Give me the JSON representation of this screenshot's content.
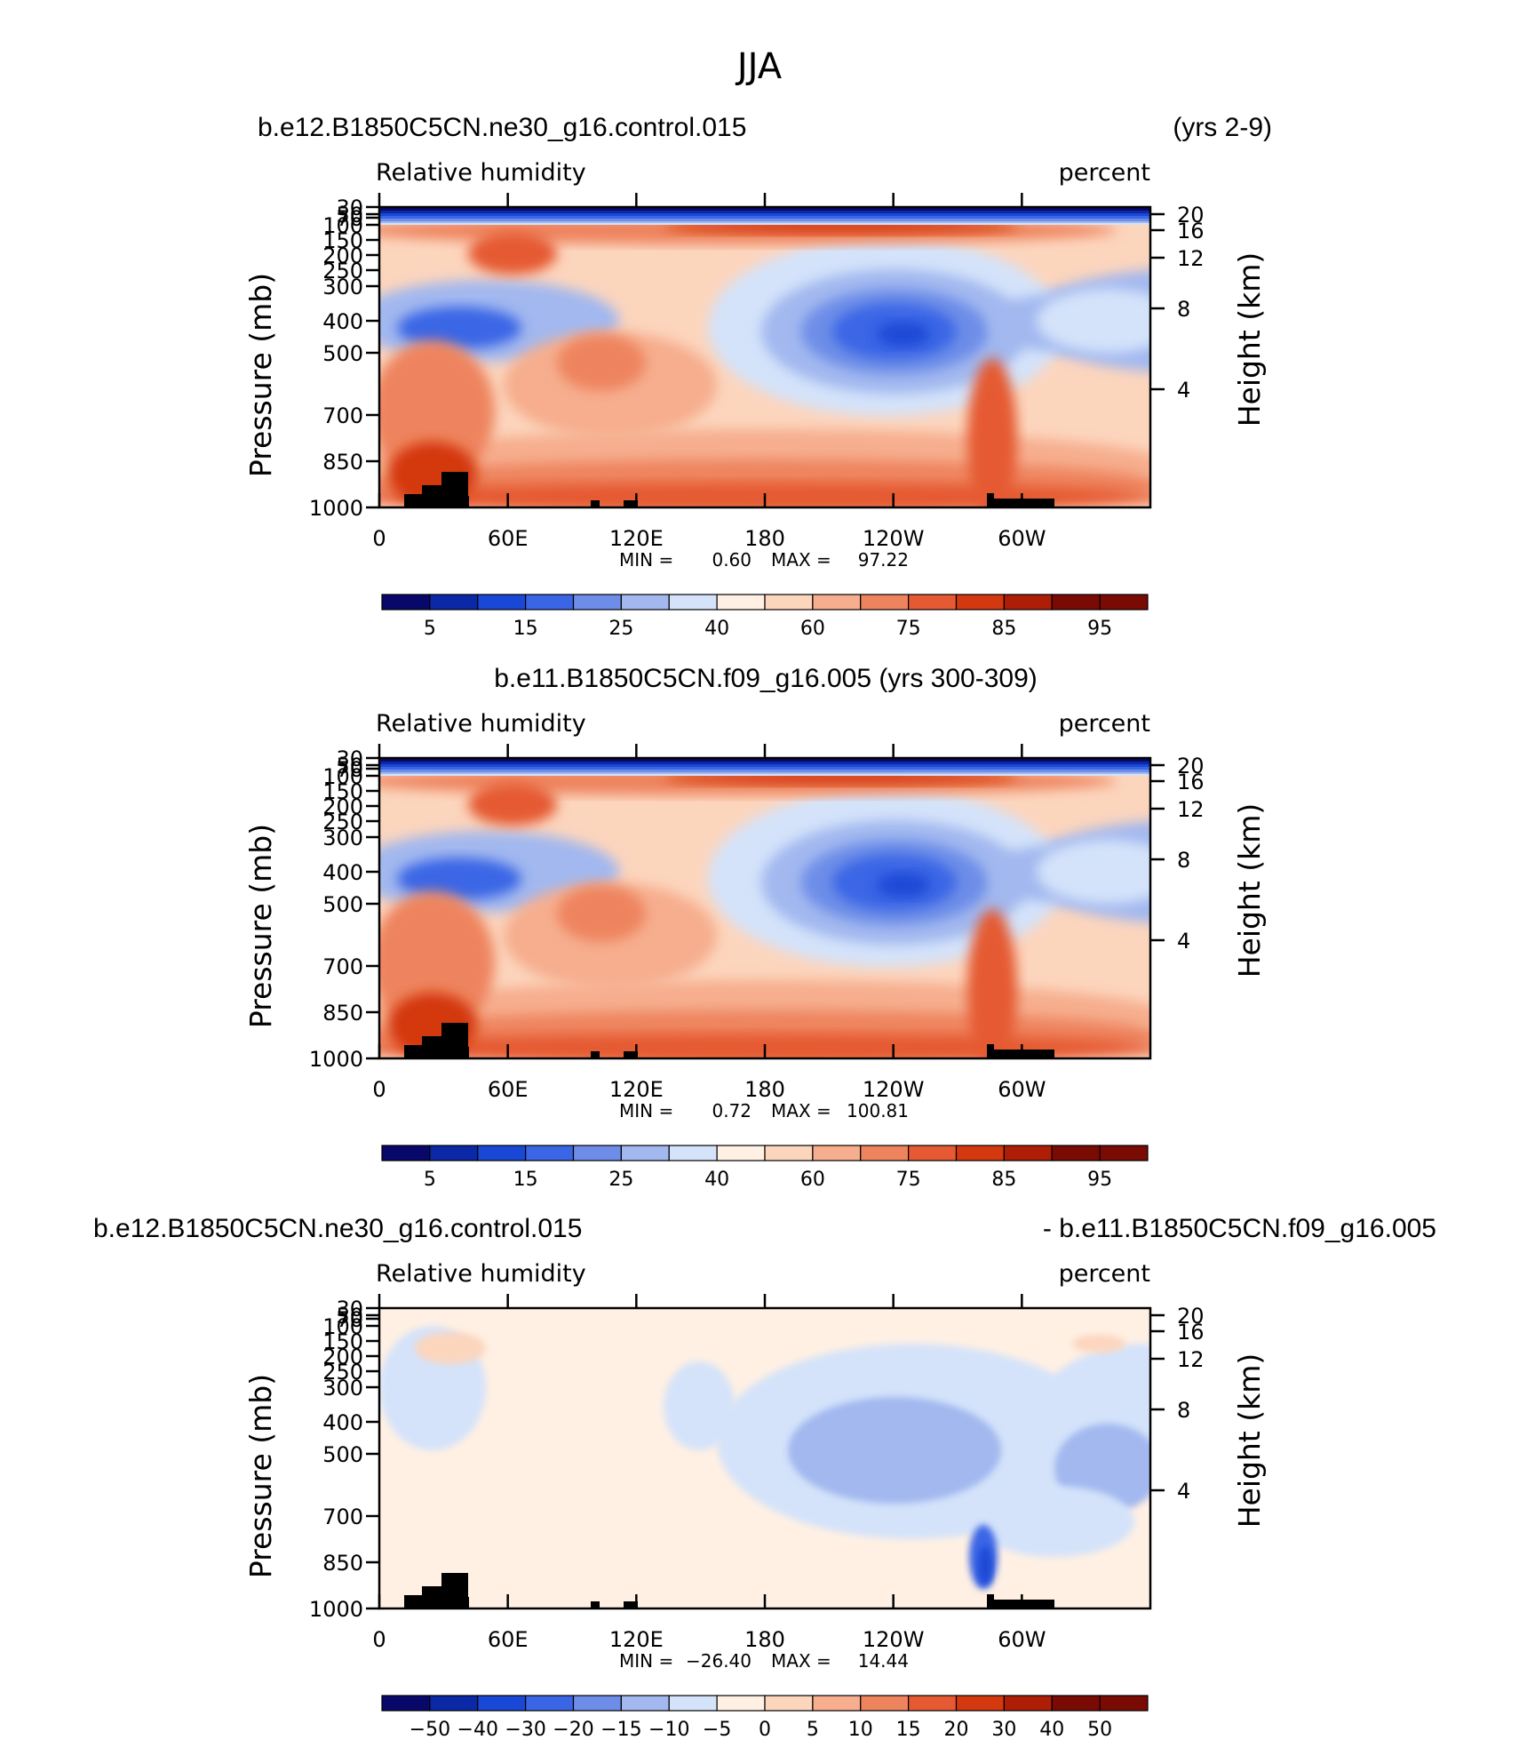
{
  "figure_title": "JJA",
  "colors": {
    "land": "#000000",
    "axis": "#000000",
    "rh_palette": [
      "#08086b",
      "#0b28a6",
      "#1a48d6",
      "#3a66e6",
      "#6d8de8",
      "#a2b8ef",
      "#d4e3fa",
      "#fff0e3",
      "#fcd5bd",
      "#f6ae8e",
      "#ee845e",
      "#e55a32",
      "#d4380f",
      "#ae1e06",
      "#7a0a04"
    ],
    "diff_palette": [
      "#08086b",
      "#0b28a6",
      "#1a48d6",
      "#3a66e6",
      "#6d8de8",
      "#a2b8ef",
      "#d4e3fa",
      "#fff0e3",
      "#fcd5bd",
      "#f6ae8e",
      "#ee845e",
      "#e55a32",
      "#d4380f",
      "#ae1e06",
      "#7a0a04"
    ]
  },
  "chart_data": [
    {
      "type": "heatmap",
      "panel_title_left": "b.e12.B1850C5CN.ne30_g16.control.015",
      "panel_title_right": "(yrs 2-9)",
      "label_left": "Relative  humidity",
      "label_right": "percent",
      "ylabel": "Pressure  (mb)",
      "ylabel_right": "Height  (km)",
      "xticks": [
        "0",
        "60E",
        "120E",
        "180",
        "120W",
        "60W"
      ],
      "xlim": [
        0,
        360
      ],
      "yticks": [
        "30",
        "50",
        "70",
        "100",
        "150",
        "200",
        "250",
        "300",
        "400",
        "500",
        "700",
        "850",
        "1000"
      ],
      "ylim": [
        1000,
        30
      ],
      "yticks_right": [
        "20",
        "16",
        "12",
        "8",
        "4"
      ],
      "stats": {
        "min_label": "MIN =",
        "min": "0.60",
        "max_label": "MAX =",
        "max": "97.22"
      },
      "colorbar_labels": [
        "5",
        "15",
        "25",
        "40",
        "60",
        "75",
        "85",
        "95"
      ],
      "range": [
        0.6,
        97.22
      ]
    },
    {
      "type": "heatmap",
      "panel_title_center": "b.e11.B1850C5CN.f09_g16.005 (yrs 300-309)",
      "label_left": "Relative  humidity",
      "label_right": "percent",
      "ylabel": "Pressure  (mb)",
      "ylabel_right": "Height  (km)",
      "xticks": [
        "0",
        "60E",
        "120E",
        "180",
        "120W",
        "60W"
      ],
      "xlim": [
        0,
        360
      ],
      "yticks": [
        "30",
        "50",
        "70",
        "100",
        "150",
        "200",
        "250",
        "300",
        "400",
        "500",
        "700",
        "850",
        "1000"
      ],
      "ylim": [
        1000,
        30
      ],
      "yticks_right": [
        "20",
        "16",
        "12",
        "8",
        "4"
      ],
      "stats": {
        "min_label": "MIN =",
        "min": "0.72",
        "max_label": "MAX =",
        "max": "100.81"
      },
      "colorbar_labels": [
        "5",
        "15",
        "25",
        "40",
        "60",
        "75",
        "85",
        "95"
      ],
      "range": [
        0.72,
        100.81
      ]
    },
    {
      "type": "heatmap",
      "panel_title_left": "b.e12.B1850C5CN.ne30_g16.control.015",
      "panel_title_right": "- b.e11.B1850C5CN.f09_g16.005",
      "label_left": "Relative  humidity",
      "label_right": "percent",
      "ylabel": "Pressure  (mb)",
      "ylabel_right": "Height  (km)",
      "xticks": [
        "0",
        "60E",
        "120E",
        "180",
        "120W",
        "60W"
      ],
      "xlim": [
        0,
        360
      ],
      "yticks": [
        "30",
        "50",
        "70",
        "100",
        "150",
        "200",
        "250",
        "300",
        "400",
        "500",
        "700",
        "850",
        "1000"
      ],
      "ylim": [
        1000,
        30
      ],
      "yticks_right": [
        "20",
        "16",
        "12",
        "8",
        "4"
      ],
      "stats": {
        "min_label": "MIN =",
        "min": "−26.40",
        "max_label": "MAX =",
        "max": "14.44"
      },
      "colorbar_labels": [
        "−50",
        "−40",
        "−30",
        "−20",
        "−15",
        "−10",
        "−5",
        "0",
        "5",
        "10",
        "15",
        "20",
        "30",
        "40",
        "50"
      ],
      "range": [
        -26.4,
        14.44
      ]
    }
  ]
}
